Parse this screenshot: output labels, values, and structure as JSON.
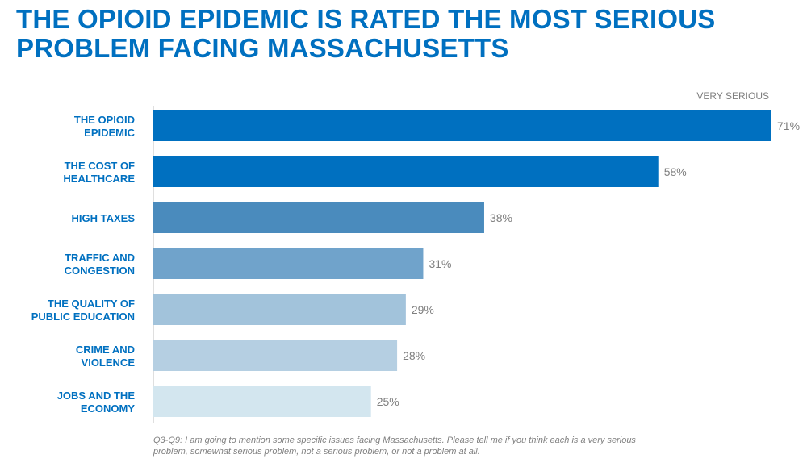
{
  "title": "THE OPIOID EPIDEMIC IS RATED THE MOST SERIOUS\nPROBLEM FACING MASSACHUSETTS",
  "footnote": "Q3-Q9: I am going to mention some specific issues facing Massachusetts. Please tell me if you think each is a very serious problem, somewhat serious problem, not a serious problem, or not a problem at all.",
  "chart_data": {
    "type": "bar",
    "orientation": "horizontal",
    "series_label": "VERY SERIOUS",
    "categories": [
      [
        "THE OPIOID",
        "EPIDEMIC"
      ],
      [
        "THE COST OF",
        "HEALTHCARE"
      ],
      [
        "HIGH TAXES"
      ],
      [
        "TRAFFIC AND",
        "CONGESTION"
      ],
      [
        "THE QUALITY OF",
        "PUBLIC EDUCATION"
      ],
      [
        "CRIME AND",
        "VIOLENCE"
      ],
      [
        "JOBS AND THE",
        "ECONOMY"
      ]
    ],
    "values": [
      71,
      58,
      38,
      31,
      29,
      28,
      25
    ],
    "value_labels": [
      "71%",
      "58%",
      "38%",
      "31%",
      "29%",
      "28%",
      "25%"
    ],
    "colors": [
      "#0070c0",
      "#0070c0",
      "#4a8bbd",
      "#70a3cb",
      "#a2c3db",
      "#b5cfe2",
      "#d3e6ef"
    ],
    "xlim": [
      0,
      71
    ],
    "grid": false,
    "legend_position": "top-right"
  }
}
